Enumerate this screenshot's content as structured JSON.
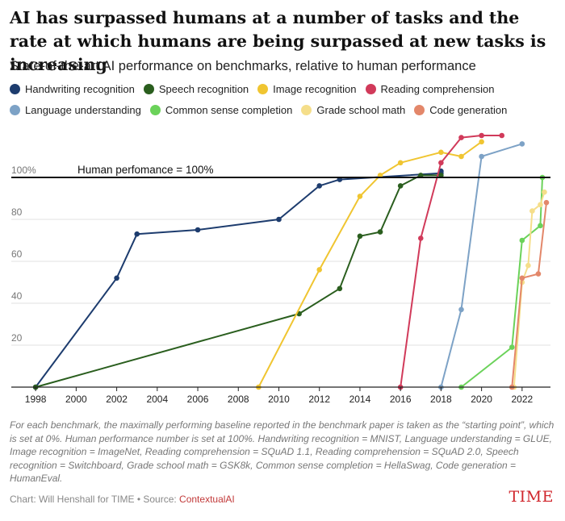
{
  "header": {
    "title": "AI has surpassed humans at a number of tasks and the rate at which humans are being surpassed at new tasks is increasing",
    "subtitle": "State-of-the-art AI performance on benchmarks, relative to human performance"
  },
  "legend": [
    {
      "label": "Handwriting recognition",
      "color": "#1d3c6e"
    },
    {
      "label": "Speech recognition",
      "color": "#2a5e1e"
    },
    {
      "label": "Image recognition",
      "color": "#f0c531"
    },
    {
      "label": "Reading comprehension",
      "color": "#d13a5a"
    },
    {
      "label": "Language understanding",
      "color": "#7da2c6"
    },
    {
      "label": "Common sense completion",
      "color": "#6bd25a"
    },
    {
      "label": "Grade school math",
      "color": "#f5de8a"
    },
    {
      "label": "Code generation",
      "color": "#e3876a"
    }
  ],
  "chart_data": {
    "type": "line",
    "title": "AI has surpassed humans at a number of tasks and the rate at which humans are being surpassed at new tasks is increasing",
    "subtitle": "State-of-the-art AI performance on benchmarks, relative to human performance",
    "xlim": [
      1996.8,
      2023.4
    ],
    "ylim": [
      0,
      120
    ],
    "x_ticks": [
      1998,
      2000,
      2002,
      2004,
      2006,
      2008,
      2010,
      2012,
      2014,
      2016,
      2018,
      2020,
      2022
    ],
    "y_ticks": [
      20,
      40,
      60,
      80,
      100
    ],
    "y_tick_labels": [
      "20",
      "40",
      "60",
      "80",
      "100%"
    ],
    "reference_line": {
      "y": 100,
      "label": "Human perfomance = 100%"
    },
    "grid": "horizontal",
    "series": [
      {
        "name": "Handwriting recognition",
        "color": "#1d3c6e",
        "points": [
          [
            1998,
            0
          ],
          [
            2002,
            52
          ],
          [
            2003,
            73
          ],
          [
            2006,
            75
          ],
          [
            2010,
            80
          ],
          [
            2012,
            96
          ],
          [
            2013,
            99
          ],
          [
            2018,
            102
          ],
          [
            2018,
            103
          ]
        ]
      },
      {
        "name": "Speech recognition",
        "color": "#2a5e1e",
        "points": [
          [
            1998,
            0
          ],
          [
            2011,
            35
          ],
          [
            2013,
            47
          ],
          [
            2014,
            72
          ],
          [
            2015,
            74
          ],
          [
            2016,
            96
          ],
          [
            2017,
            101
          ],
          [
            2018,
            101
          ]
        ]
      },
      {
        "name": "Image recognition",
        "color": "#f0c531",
        "points": [
          [
            2009,
            0
          ],
          [
            2012,
            56
          ],
          [
            2014,
            91
          ],
          [
            2015,
            101
          ],
          [
            2016,
            107
          ],
          [
            2018,
            112
          ],
          [
            2019,
            110
          ],
          [
            2020,
            117
          ]
        ]
      },
      {
        "name": "Reading comprehension",
        "color": "#d13a5a",
        "points": [
          [
            2016,
            0
          ],
          [
            2017,
            71
          ],
          [
            2018,
            107
          ],
          [
            2019,
            119
          ],
          [
            2020,
            120
          ],
          [
            2021,
            120
          ]
        ]
      },
      {
        "name": "Language understanding",
        "color": "#7da2c6",
        "points": [
          [
            2018,
            0
          ],
          [
            2019,
            37
          ],
          [
            2020,
            110
          ],
          [
            2022,
            116
          ]
        ]
      },
      {
        "name": "Common sense completion",
        "color": "#6bd25a",
        "points": [
          [
            2019,
            0
          ],
          [
            2021.5,
            19
          ],
          [
            2022,
            70
          ],
          [
            2022.9,
            77
          ],
          [
            2023,
            100
          ]
        ]
      },
      {
        "name": "Grade school math",
        "color": "#f5de8a",
        "points": [
          [
            2021.6,
            0
          ],
          [
            2022,
            50
          ],
          [
            2022.3,
            58
          ],
          [
            2022.5,
            84
          ],
          [
            2022.9,
            87
          ],
          [
            2023.1,
            93
          ]
        ]
      },
      {
        "name": "Code generation",
        "color": "#e3876a",
        "points": [
          [
            2021.5,
            0
          ],
          [
            2022,
            52
          ],
          [
            2022.8,
            54
          ],
          [
            2023.2,
            88
          ]
        ]
      }
    ]
  },
  "footnote": "For each benchmark, the maximally performing baseline reported in the benchmark paper is taken as the “starting point”, which is set at 0%. Human performance number is set at 100%. Handwriting recognition = MNIST, Language understanding = GLUE, Image recognition = ImageNet, Reading comprehension = SQuAD 1.1, Reading comprehension = SQuAD 2.0, Speech recognition = Switchboard, Grade school math = GSK8k, Common sense completion = HellaSwag, Code generation = HumanEval.",
  "credit": {
    "prefix": "Chart: Will Henshall for TIME • Source: ",
    "source": "ContextualAI"
  },
  "brand": "TIME"
}
